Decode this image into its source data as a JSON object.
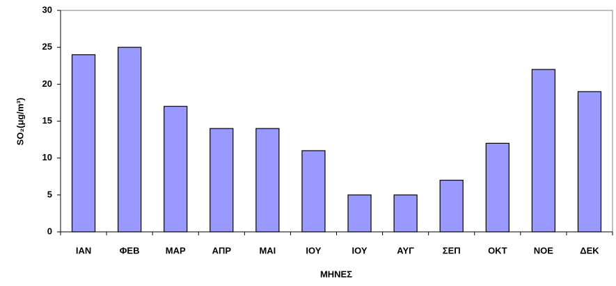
{
  "chart_data": {
    "type": "bar",
    "categories": [
      "ΙΑΝ",
      "ΦΕΒ",
      "ΜΑΡ",
      "ΑΠΡ",
      "ΜΑΙ",
      "ΙΟΥ",
      "ΙΟΥ",
      "ΑΥΓ",
      "ΣΕΠ",
      "ΟΚΤ",
      "ΝΟΕ",
      "ΔΕΚ"
    ],
    "values": [
      24,
      25,
      17,
      14,
      14,
      11,
      5,
      5,
      7,
      12,
      22,
      19
    ],
    "color": "#9999ff",
    "ylim": [
      0,
      30
    ],
    "yticks": [
      0,
      5,
      10,
      15,
      20,
      25,
      30
    ],
    "grid": false,
    "x_label": "ΜΗΝΕΣ",
    "y_label": "SO₂(μg/m³)"
  }
}
